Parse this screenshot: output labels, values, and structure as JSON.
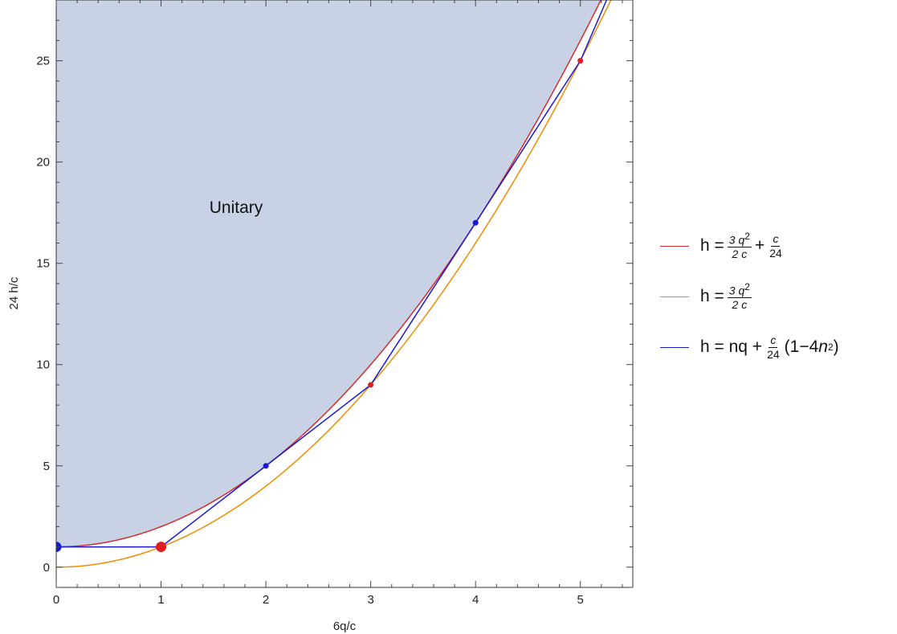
{
  "chart_data": {
    "type": "line",
    "xlabel": "6q/c",
    "ylabel": "24 h/c",
    "xlim": [
      0,
      5.5
    ],
    "ylim": [
      -1,
      28
    ],
    "x_ticks": [
      "0",
      "1",
      "2",
      "3",
      "4",
      "5"
    ],
    "y_ticks": [
      "0",
      "5",
      "10",
      "15",
      "20",
      "25"
    ],
    "grid": false,
    "legend_position": "right",
    "annotation": "Unitary",
    "series": [
      {
        "name": "h = 3q²/2c + c/24",
        "color": "#d62c2c",
        "formula": "x^2 + 1",
        "sample_points": [
          [
            0,
            1
          ],
          [
            1,
            2
          ],
          [
            2,
            5
          ],
          [
            3,
            10
          ],
          [
            4,
            17
          ],
          [
            5,
            26
          ]
        ]
      },
      {
        "name": "h = 3q²/2c",
        "color": "#f08c00",
        "formula": "x^2",
        "sample_points": [
          [
            0,
            0
          ],
          [
            1,
            1
          ],
          [
            2,
            4
          ],
          [
            3,
            9
          ],
          [
            4,
            16
          ],
          [
            5,
            25
          ]
        ]
      },
      {
        "name": "h = nq + c/24(1−4n²)",
        "color": "#1a1ad6",
        "points": [
          [
            0,
            1
          ],
          [
            1,
            1
          ],
          [
            2,
            5
          ],
          [
            3,
            9
          ],
          [
            4,
            17
          ],
          [
            5,
            25
          ],
          [
            6,
            37
          ]
        ]
      }
    ],
    "marker_points": [
      {
        "x": 0,
        "y": 1,
        "color": "#1a1ad6",
        "size": "large"
      },
      {
        "x": 1,
        "y": 1,
        "color": "#e02020",
        "size": "large"
      },
      {
        "x": 2,
        "y": 5,
        "color": "#1a1ad6",
        "size": "small"
      },
      {
        "x": 3,
        "y": 9,
        "color": "#e02020",
        "size": "small"
      },
      {
        "x": 4,
        "y": 17,
        "color": "#1a1ad6",
        "size": "small"
      },
      {
        "x": 5,
        "y": 25,
        "color": "#e02020",
        "size": "small"
      }
    ],
    "fill_region": {
      "label": "Unitary",
      "color": "#c8d2e4",
      "bounded_below_by": "h = 3q²/2c + c/24"
    }
  },
  "legend": {
    "red": {
      "lhs": "h =",
      "frac1_num": "3 q",
      "frac1_num_sup": "2",
      "frac1_den": "2 c",
      "plus": "+",
      "frac2_num": "c",
      "frac2_den": "24"
    },
    "orange": {
      "lhs": "h =",
      "frac1_num": "3 q",
      "frac1_num_sup": "2",
      "frac1_den": "2 c"
    },
    "blue": {
      "lhs": "h = nq +",
      "frac_num": "c",
      "frac_den": "24",
      "tail_open": "(1−4",
      "tail_n": "n",
      "tail_sup": "2",
      "tail_close": ")"
    }
  }
}
